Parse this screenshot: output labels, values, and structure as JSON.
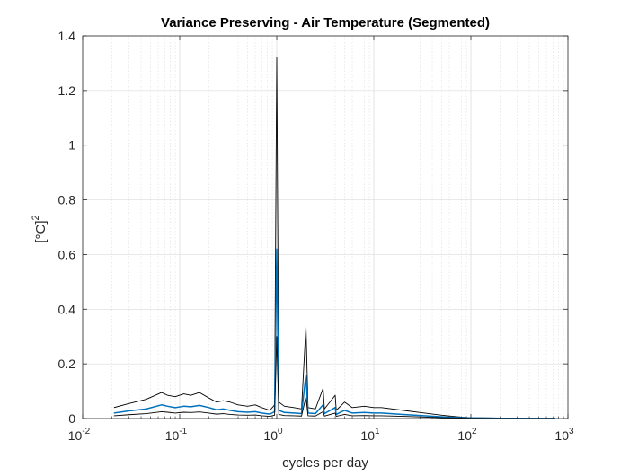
{
  "chart_data": {
    "type": "line",
    "title": "Variance Preserving - Air Temperature (Segmented)",
    "xlabel": "cycles per day",
    "ylabel": {
      "main": "[°C]",
      "superscript": "2"
    },
    "x_scale": "log",
    "xlim": [
      0.01,
      1000
    ],
    "ylim": [
      0,
      1.4
    ],
    "grid": "on (log minor x, major y)",
    "x_ticks": [
      {
        "value": 0.01,
        "base": "10",
        "exp": "-2"
      },
      {
        "value": 0.1,
        "base": "10",
        "exp": "-1"
      },
      {
        "value": 1,
        "base": "10",
        "exp": "0"
      },
      {
        "value": 10,
        "base": "10",
        "exp": "1"
      },
      {
        "value": 100,
        "base": "10",
        "exp": "2"
      },
      {
        "value": 1000,
        "base": "10",
        "exp": "3"
      }
    ],
    "y_ticks": [
      {
        "value": 0,
        "label": "0"
      },
      {
        "value": 0.2,
        "label": "0.2"
      },
      {
        "value": 0.4,
        "label": "0.4"
      },
      {
        "value": 0.6,
        "label": "0.6"
      },
      {
        "value": 0.8,
        "label": "0.8"
      },
      {
        "value": 1.0,
        "label": "1"
      },
      {
        "value": 1.2,
        "label": "1.2"
      },
      {
        "value": 1.4,
        "label": "1.4"
      }
    ],
    "series": [
      {
        "role": "upper-confidence",
        "color": "#000000",
        "points": [
          [
            0.021,
            0.04
          ],
          [
            0.03,
            0.055
          ],
          [
            0.045,
            0.07
          ],
          [
            0.065,
            0.095
          ],
          [
            0.075,
            0.085
          ],
          [
            0.09,
            0.08
          ],
          [
            0.11,
            0.09
          ],
          [
            0.13,
            0.085
          ],
          [
            0.16,
            0.095
          ],
          [
            0.2,
            0.075
          ],
          [
            0.24,
            0.06
          ],
          [
            0.28,
            0.065
          ],
          [
            0.33,
            0.06
          ],
          [
            0.4,
            0.05
          ],
          [
            0.5,
            0.045
          ],
          [
            0.6,
            0.05
          ],
          [
            0.7,
            0.04
          ],
          [
            0.85,
            0.03
          ],
          [
            0.95,
            0.05
          ],
          [
            1.0,
            1.32
          ],
          [
            1.05,
            0.06
          ],
          [
            1.2,
            0.045
          ],
          [
            1.5,
            0.04
          ],
          [
            1.8,
            0.035
          ],
          [
            2.0,
            0.34
          ],
          [
            2.1,
            0.04
          ],
          [
            2.5,
            0.035
          ],
          [
            3.0,
            0.11
          ],
          [
            3.1,
            0.035
          ],
          [
            4.0,
            0.085
          ],
          [
            4.1,
            0.03
          ],
          [
            5.0,
            0.06
          ],
          [
            6.0,
            0.04
          ],
          [
            8.0,
            0.045
          ],
          [
            10.0,
            0.04
          ],
          [
            12.0,
            0.04
          ],
          [
            20.0,
            0.03
          ],
          [
            30.0,
            0.022
          ],
          [
            50.0,
            0.012
          ],
          [
            80.0,
            0.005
          ],
          [
            100.0,
            0.003
          ],
          [
            200.0,
            0.002
          ],
          [
            400.0,
            0.001
          ],
          [
            740.0,
            0.001
          ]
        ]
      },
      {
        "role": "estimate",
        "color": "#0072BD",
        "points": [
          [
            0.021,
            0.02
          ],
          [
            0.03,
            0.028
          ],
          [
            0.045,
            0.035
          ],
          [
            0.065,
            0.05
          ],
          [
            0.075,
            0.045
          ],
          [
            0.09,
            0.04
          ],
          [
            0.11,
            0.045
          ],
          [
            0.13,
            0.043
          ],
          [
            0.16,
            0.048
          ],
          [
            0.2,
            0.04
          ],
          [
            0.24,
            0.032
          ],
          [
            0.28,
            0.035
          ],
          [
            0.33,
            0.03
          ],
          [
            0.4,
            0.025
          ],
          [
            0.5,
            0.023
          ],
          [
            0.6,
            0.025
          ],
          [
            0.7,
            0.02
          ],
          [
            0.85,
            0.016
          ],
          [
            0.95,
            0.025
          ],
          [
            1.0,
            0.62
          ],
          [
            1.05,
            0.03
          ],
          [
            1.2,
            0.022
          ],
          [
            1.5,
            0.02
          ],
          [
            1.8,
            0.018
          ],
          [
            2.0,
            0.16
          ],
          [
            2.1,
            0.02
          ],
          [
            2.5,
            0.018
          ],
          [
            3.0,
            0.05
          ],
          [
            3.1,
            0.018
          ],
          [
            4.0,
            0.04
          ],
          [
            4.1,
            0.015
          ],
          [
            5.0,
            0.03
          ],
          [
            6.0,
            0.02
          ],
          [
            8.0,
            0.022
          ],
          [
            10.0,
            0.02
          ],
          [
            12.0,
            0.02
          ],
          [
            20.0,
            0.015
          ],
          [
            30.0,
            0.011
          ],
          [
            50.0,
            0.006
          ],
          [
            80.0,
            0.003
          ],
          [
            100.0,
            0.002
          ],
          [
            200.0,
            0.001
          ],
          [
            400.0,
            0.0006
          ],
          [
            740.0,
            0.0005
          ]
        ]
      },
      {
        "role": "lower-confidence",
        "color": "#000000",
        "points": [
          [
            0.021,
            0.01
          ],
          [
            0.03,
            0.014
          ],
          [
            0.045,
            0.018
          ],
          [
            0.065,
            0.025
          ],
          [
            0.075,
            0.023
          ],
          [
            0.09,
            0.02
          ],
          [
            0.11,
            0.023
          ],
          [
            0.13,
            0.022
          ],
          [
            0.16,
            0.024
          ],
          [
            0.2,
            0.02
          ],
          [
            0.24,
            0.016
          ],
          [
            0.28,
            0.018
          ],
          [
            0.33,
            0.015
          ],
          [
            0.4,
            0.013
          ],
          [
            0.5,
            0.012
          ],
          [
            0.6,
            0.013
          ],
          [
            0.7,
            0.01
          ],
          [
            0.85,
            0.008
          ],
          [
            0.95,
            0.012
          ],
          [
            1.0,
            0.3
          ],
          [
            1.05,
            0.015
          ],
          [
            1.2,
            0.011
          ],
          [
            1.5,
            0.01
          ],
          [
            1.8,
            0.009
          ],
          [
            2.0,
            0.08
          ],
          [
            2.1,
            0.01
          ],
          [
            2.5,
            0.009
          ],
          [
            3.0,
            0.025
          ],
          [
            3.1,
            0.009
          ],
          [
            4.0,
            0.02
          ],
          [
            4.1,
            0.008
          ],
          [
            5.0,
            0.015
          ],
          [
            6.0,
            0.01
          ],
          [
            8.0,
            0.011
          ],
          [
            10.0,
            0.01
          ],
          [
            12.0,
            0.01
          ],
          [
            20.0,
            0.008
          ],
          [
            30.0,
            0.006
          ],
          [
            50.0,
            0.003
          ],
          [
            80.0,
            0.0015
          ],
          [
            100.0,
            0.001
          ],
          [
            200.0,
            0.0005
          ],
          [
            400.0,
            0.0003
          ],
          [
            740.0,
            0.0002
          ]
        ]
      }
    ]
  }
}
